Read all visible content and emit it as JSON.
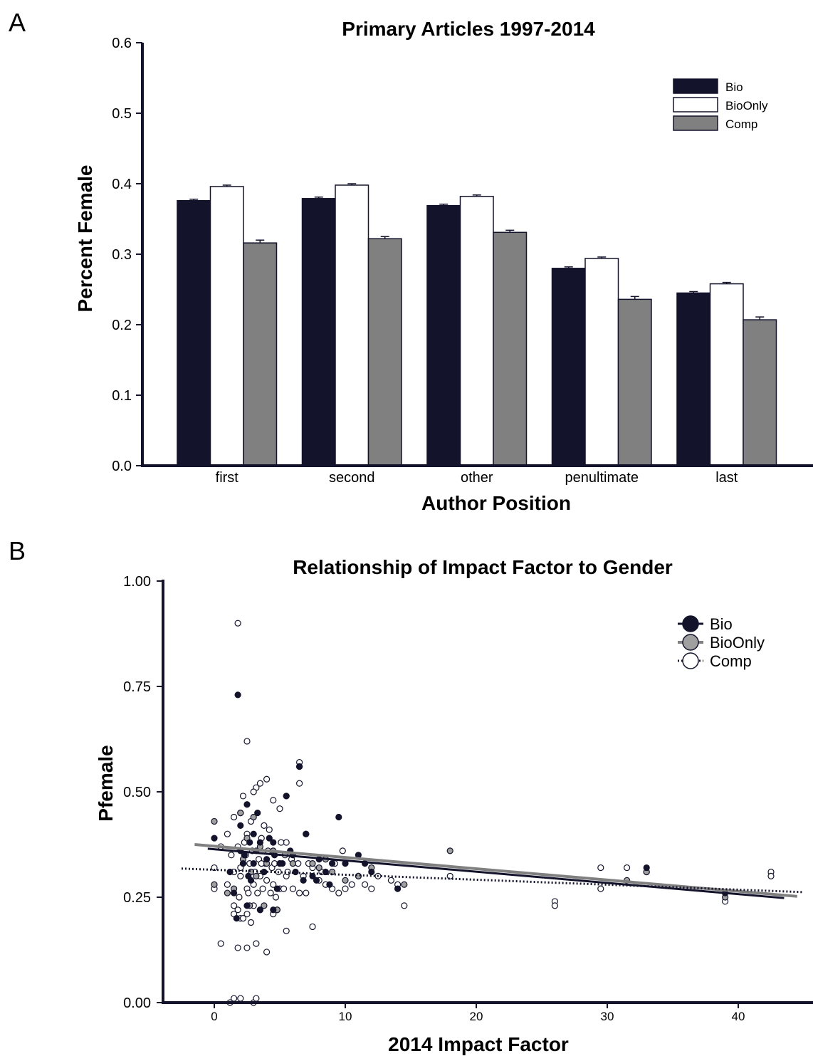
{
  "panel_labels": {
    "a": "A",
    "b": "B"
  },
  "colors": {
    "bio": "#13132b",
    "bioonly": "#ffffff",
    "comp": "#808080",
    "outline": "#13132b",
    "scatter_gray": "#a0a0a0"
  },
  "chart_data": [
    {
      "type": "bar",
      "title": "Primary Articles 1997-2014",
      "xlabel": "Author Position",
      "ylabel": "Percent Female",
      "ylim": [
        0,
        0.6
      ],
      "yticks": [
        "0.0",
        "0.1",
        "0.2",
        "0.3",
        "0.4",
        "0.5",
        "0.6"
      ],
      "categories": [
        "first",
        "second",
        "other",
        "penultimate",
        "last"
      ],
      "legend_position": "top-right",
      "series": [
        {
          "name": "Bio",
          "values": [
            0.376,
            0.379,
            0.369,
            0.28,
            0.245
          ],
          "errors": [
            0.002,
            0.002,
            0.002,
            0.002,
            0.002
          ]
        },
        {
          "name": "BioOnly",
          "values": [
            0.396,
            0.398,
            0.382,
            0.294,
            0.258
          ],
          "errors": [
            0.002,
            0.002,
            0.002,
            0.002,
            0.002
          ]
        },
        {
          "name": "Comp",
          "values": [
            0.316,
            0.322,
            0.331,
            0.236,
            0.207
          ],
          "errors": [
            0.004,
            0.003,
            0.003,
            0.004,
            0.004
          ]
        }
      ]
    },
    {
      "type": "scatter",
      "title": "Relationship of Impact Factor to Gender",
      "xlabel": "2014 Impact Factor",
      "ylabel": "Pfemale",
      "xlim": [
        -4,
        45
      ],
      "ylim": [
        0,
        1
      ],
      "xticks": [
        "0",
        "10",
        "20",
        "30",
        "40"
      ],
      "yticks": [
        "0.00",
        "0.25",
        "0.50",
        "0.75",
        "1.00"
      ],
      "legend_position": "top-right",
      "series": [
        {
          "name": "Bio",
          "trend": {
            "x": [
              -0.5,
              43.5
            ],
            "y": [
              0.365,
              0.248
            ]
          }
        },
        {
          "name": "BioOnly",
          "trend": {
            "x": [
              -1.5,
              44.5
            ],
            "y": [
              0.375,
              0.252
            ]
          }
        },
        {
          "name": "Comp",
          "trend": {
            "x": [
              -2.5,
              45
            ],
            "y": [
              0.318,
              0.262
            ]
          }
        }
      ],
      "points": {
        "bio": [
          [
            0.0,
            0.39
          ],
          [
            1.8,
            0.73
          ],
          [
            6.5,
            0.56
          ],
          [
            2.0,
            0.36
          ],
          [
            2.5,
            0.47
          ],
          [
            3.0,
            0.4
          ],
          [
            3.5,
            0.38
          ],
          [
            4.0,
            0.34
          ],
          [
            4.5,
            0.38
          ],
          [
            5.0,
            0.33
          ],
          [
            5.5,
            0.49
          ],
          [
            6.0,
            0.35
          ],
          [
            7.0,
            0.4
          ],
          [
            8.0,
            0.34
          ],
          [
            9.0,
            0.33
          ],
          [
            9.5,
            0.44
          ],
          [
            11.0,
            0.35
          ],
          [
            2.2,
            0.33
          ],
          [
            2.8,
            0.29
          ],
          [
            3.2,
            0.36
          ],
          [
            1.5,
            0.26
          ],
          [
            2.5,
            0.23
          ],
          [
            3.5,
            0.22
          ],
          [
            4.5,
            0.22
          ],
          [
            1.2,
            0.31
          ],
          [
            2.0,
            0.42
          ],
          [
            2.7,
            0.38
          ],
          [
            3.8,
            0.31
          ],
          [
            4.2,
            0.39
          ],
          [
            5.2,
            0.33
          ],
          [
            6.2,
            0.31
          ],
          [
            7.5,
            0.3
          ],
          [
            8.5,
            0.31
          ],
          [
            10.0,
            0.33
          ],
          [
            12.0,
            0.31
          ],
          [
            14.0,
            0.27
          ],
          [
            33.0,
            0.32
          ],
          [
            39.0,
            0.26
          ],
          [
            4.8,
            0.27
          ],
          [
            3.0,
            0.33
          ],
          [
            2.3,
            0.35
          ],
          [
            1.7,
            0.2
          ],
          [
            2.6,
            0.3
          ],
          [
            3.3,
            0.45
          ],
          [
            4.6,
            0.35
          ],
          [
            5.8,
            0.36
          ],
          [
            6.8,
            0.29
          ],
          [
            7.8,
            0.29
          ],
          [
            8.8,
            0.28
          ],
          [
            11.5,
            0.33
          ]
        ],
        "bioonly": [
          [
            0.0,
            0.43
          ],
          [
            2.0,
            0.45
          ],
          [
            3.0,
            0.44
          ],
          [
            5.5,
            0.49
          ],
          [
            6.5,
            0.56
          ],
          [
            7.0,
            0.4
          ],
          [
            18.0,
            0.36
          ],
          [
            2.5,
            0.39
          ],
          [
            3.5,
            0.37
          ],
          [
            4.5,
            0.36
          ],
          [
            1.5,
            0.27
          ],
          [
            2.2,
            0.34
          ],
          [
            2.8,
            0.31
          ],
          [
            3.2,
            0.3
          ],
          [
            4.0,
            0.33
          ],
          [
            5.0,
            0.33
          ],
          [
            6.0,
            0.33
          ],
          [
            8.0,
            0.32
          ],
          [
            9.0,
            0.31
          ],
          [
            10.0,
            0.29
          ],
          [
            11.0,
            0.3
          ],
          [
            14.5,
            0.28
          ],
          [
            31.5,
            0.29
          ],
          [
            33.0,
            0.31
          ],
          [
            39.0,
            0.25
          ],
          [
            4.8,
            0.22
          ],
          [
            3.8,
            0.23
          ],
          [
            1.0,
            0.26
          ],
          [
            0.0,
            0.28
          ],
          [
            2.7,
            0.23
          ],
          [
            12.0,
            0.32
          ],
          [
            8.5,
            0.34
          ],
          [
            7.5,
            0.33
          ]
        ],
        "comp": [
          [
            1.8,
            0.9
          ],
          [
            2.5,
            0.62
          ],
          [
            6.5,
            0.57
          ],
          [
            6.5,
            0.52
          ],
          [
            4.0,
            0.53
          ],
          [
            3.5,
            0.52
          ],
          [
            3.2,
            0.51
          ],
          [
            3.0,
            0.5
          ],
          [
            2.2,
            0.49
          ],
          [
            4.5,
            0.48
          ],
          [
            5.0,
            0.46
          ],
          [
            2.0,
            0.45
          ],
          [
            1.5,
            0.44
          ],
          [
            2.8,
            0.43
          ],
          [
            3.8,
            0.42
          ],
          [
            4.2,
            0.41
          ],
          [
            1.0,
            0.4
          ],
          [
            2.5,
            0.4
          ],
          [
            3.6,
            0.39
          ],
          [
            5.5,
            0.38
          ],
          [
            0.0,
            0.32
          ],
          [
            0.0,
            0.27
          ],
          [
            1.0,
            0.28
          ],
          [
            1.5,
            0.31
          ],
          [
            2.0,
            0.3
          ],
          [
            2.5,
            0.27
          ],
          [
            3.0,
            0.28
          ],
          [
            3.5,
            0.3
          ],
          [
            4.0,
            0.29
          ],
          [
            4.5,
            0.28
          ],
          [
            5.0,
            0.27
          ],
          [
            5.5,
            0.3
          ],
          [
            6.0,
            0.27
          ],
          [
            6.5,
            0.26
          ],
          [
            7.0,
            0.26
          ],
          [
            7.5,
            0.32
          ],
          [
            8.0,
            0.29
          ],
          [
            8.5,
            0.28
          ],
          [
            9.0,
            0.27
          ],
          [
            9.5,
            0.26
          ],
          [
            10.0,
            0.27
          ],
          [
            10.5,
            0.28
          ],
          [
            11.0,
            0.3
          ],
          [
            12.0,
            0.27
          ],
          [
            13.5,
            0.29
          ],
          [
            14.0,
            0.28
          ],
          [
            14.5,
            0.23
          ],
          [
            18.0,
            0.3
          ],
          [
            26.0,
            0.24
          ],
          [
            26.0,
            0.23
          ],
          [
            29.5,
            0.32
          ],
          [
            29.5,
            0.27
          ],
          [
            31.5,
            0.32
          ],
          [
            33.0,
            0.31
          ],
          [
            39.0,
            0.24
          ],
          [
            42.5,
            0.31
          ],
          [
            42.5,
            0.3
          ],
          [
            1.5,
            0.23
          ],
          [
            1.5,
            0.21
          ],
          [
            1.8,
            0.22
          ],
          [
            2.0,
            0.2
          ],
          [
            2.2,
            0.2
          ],
          [
            2.5,
            0.21
          ],
          [
            2.8,
            0.19
          ],
          [
            3.0,
            0.23
          ],
          [
            3.5,
            0.22
          ],
          [
            4.5,
            0.21
          ],
          [
            4.8,
            0.22
          ],
          [
            5.5,
            0.17
          ],
          [
            7.5,
            0.18
          ],
          [
            0.5,
            0.14
          ],
          [
            1.8,
            0.13
          ],
          [
            2.5,
            0.13
          ],
          [
            3.2,
            0.14
          ],
          [
            4.0,
            0.12
          ],
          [
            1.2,
            0.0
          ],
          [
            1.5,
            0.01
          ],
          [
            2.0,
            0.01
          ],
          [
            3.0,
            0.0
          ],
          [
            3.2,
            0.01
          ],
          [
            2.0,
            0.32
          ],
          [
            2.4,
            0.35
          ],
          [
            2.9,
            0.36
          ],
          [
            3.4,
            0.34
          ],
          [
            3.9,
            0.33
          ],
          [
            4.4,
            0.32
          ],
          [
            4.9,
            0.31
          ],
          [
            5.4,
            0.35
          ],
          [
            5.9,
            0.34
          ],
          [
            6.4,
            0.33
          ],
          [
            1.8,
            0.37
          ],
          [
            2.3,
            0.38
          ],
          [
            2.7,
            0.33
          ],
          [
            3.1,
            0.31
          ],
          [
            3.6,
            0.33
          ],
          [
            4.1,
            0.36
          ],
          [
            4.6,
            0.33
          ],
          [
            5.1,
            0.38
          ],
          [
            0.5,
            0.37
          ],
          [
            1.3,
            0.35
          ],
          [
            9.8,
            0.36
          ],
          [
            11.5,
            0.28
          ],
          [
            12.5,
            0.3
          ],
          [
            7.2,
            0.33
          ],
          [
            8.2,
            0.31
          ],
          [
            9.2,
            0.33
          ],
          [
            6.8,
            0.3
          ],
          [
            5.6,
            0.31
          ],
          [
            4.3,
            0.26
          ],
          [
            3.3,
            0.26
          ],
          [
            2.6,
            0.26
          ],
          [
            1.9,
            0.25
          ],
          [
            3.7,
            0.27
          ],
          [
            4.7,
            0.25
          ],
          [
            5.3,
            0.27
          ]
        ]
      }
    }
  ]
}
